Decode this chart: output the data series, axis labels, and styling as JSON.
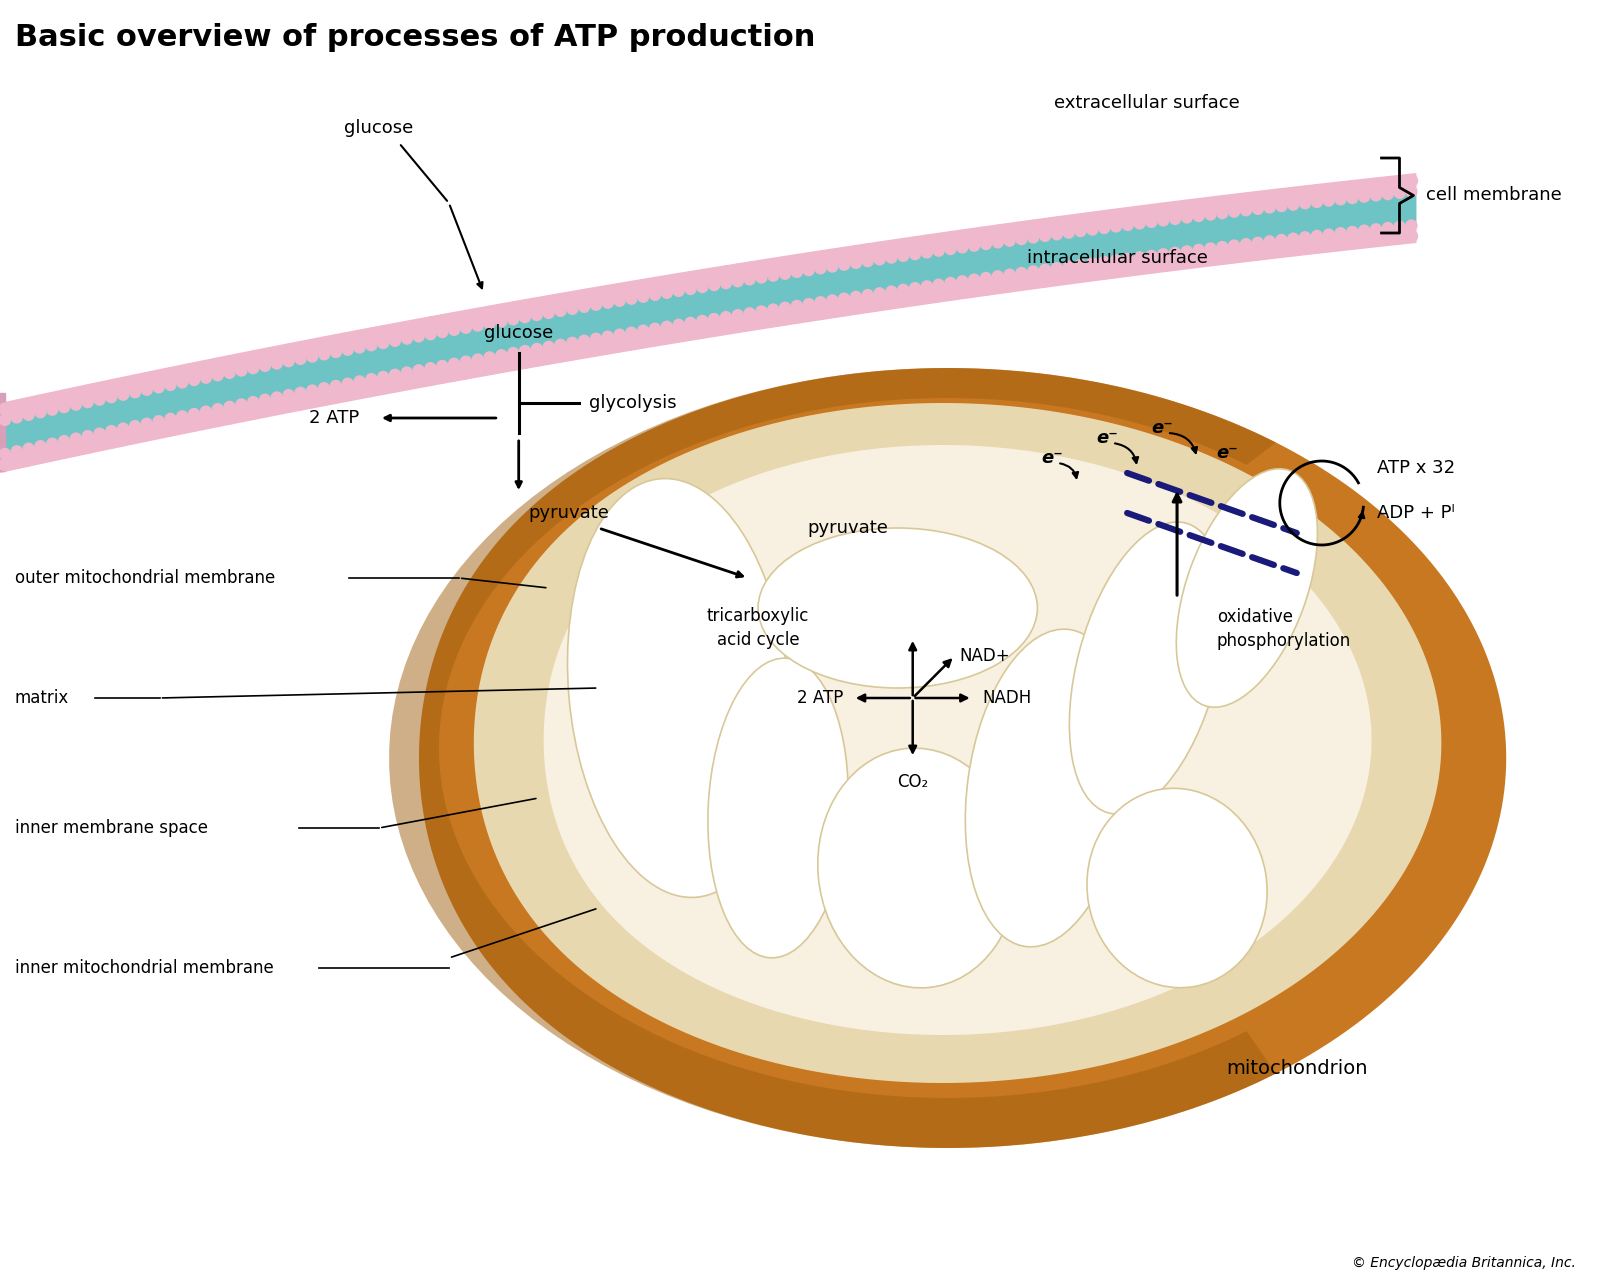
{
  "title": "Basic overview of processes of ATP production",
  "title_fontsize": 22,
  "title_fontweight": "bold",
  "background_color": "#ffffff",
  "membrane_color_teal": "#6ec4c4",
  "membrane_color_pink": "#f0b8cc",
  "mito_outer_color": "#c87820",
  "mito_inner_color": "#e8d8a8",
  "mito_matrix_color": "#f5edd8",
  "cristae_color": "#ffffff",
  "cristae_edge": "#d8c898",
  "dashed_line_color": "#1a1a7a",
  "text_color": "#000000",
  "copyright_text": "© Encyclopædia Britannica, Inc.",
  "labels": {
    "glucose_membrane": "glucose",
    "extracellular": "extracellular surface",
    "intracellular": "intracellular surface",
    "cell_membrane": "cell membrane",
    "glucose_below": "glucose",
    "glycolysis": "glycolysis",
    "2atp_glycolysis": "2 ATP",
    "pyruvate_above": "pyruvate",
    "pyruvate_inside": "pyruvate",
    "tca_cycle": "tricarboxylic\nacid cycle",
    "2atp_tca": "2 ATP",
    "co2": "CO₂",
    "nadh": "NADH",
    "nadplus": "NAD+",
    "oxidative_phos": "oxidative\nphosphorylation",
    "atp_32": "ATP x 32",
    "adp_pi": "ADP + Pᴵ",
    "e_minus1": "e⁻",
    "e_minus2": "e⁻",
    "e_minus3": "e⁻",
    "e_minus4": "e⁻",
    "outer_mito_membrane": "outer mitochondrial membrane",
    "matrix": "matrix",
    "inner_membrane_space": "inner membrane space",
    "inner_mito_membrane": "inner mitochondrial membrane",
    "mitochondrion": "mitochondrion"
  }
}
